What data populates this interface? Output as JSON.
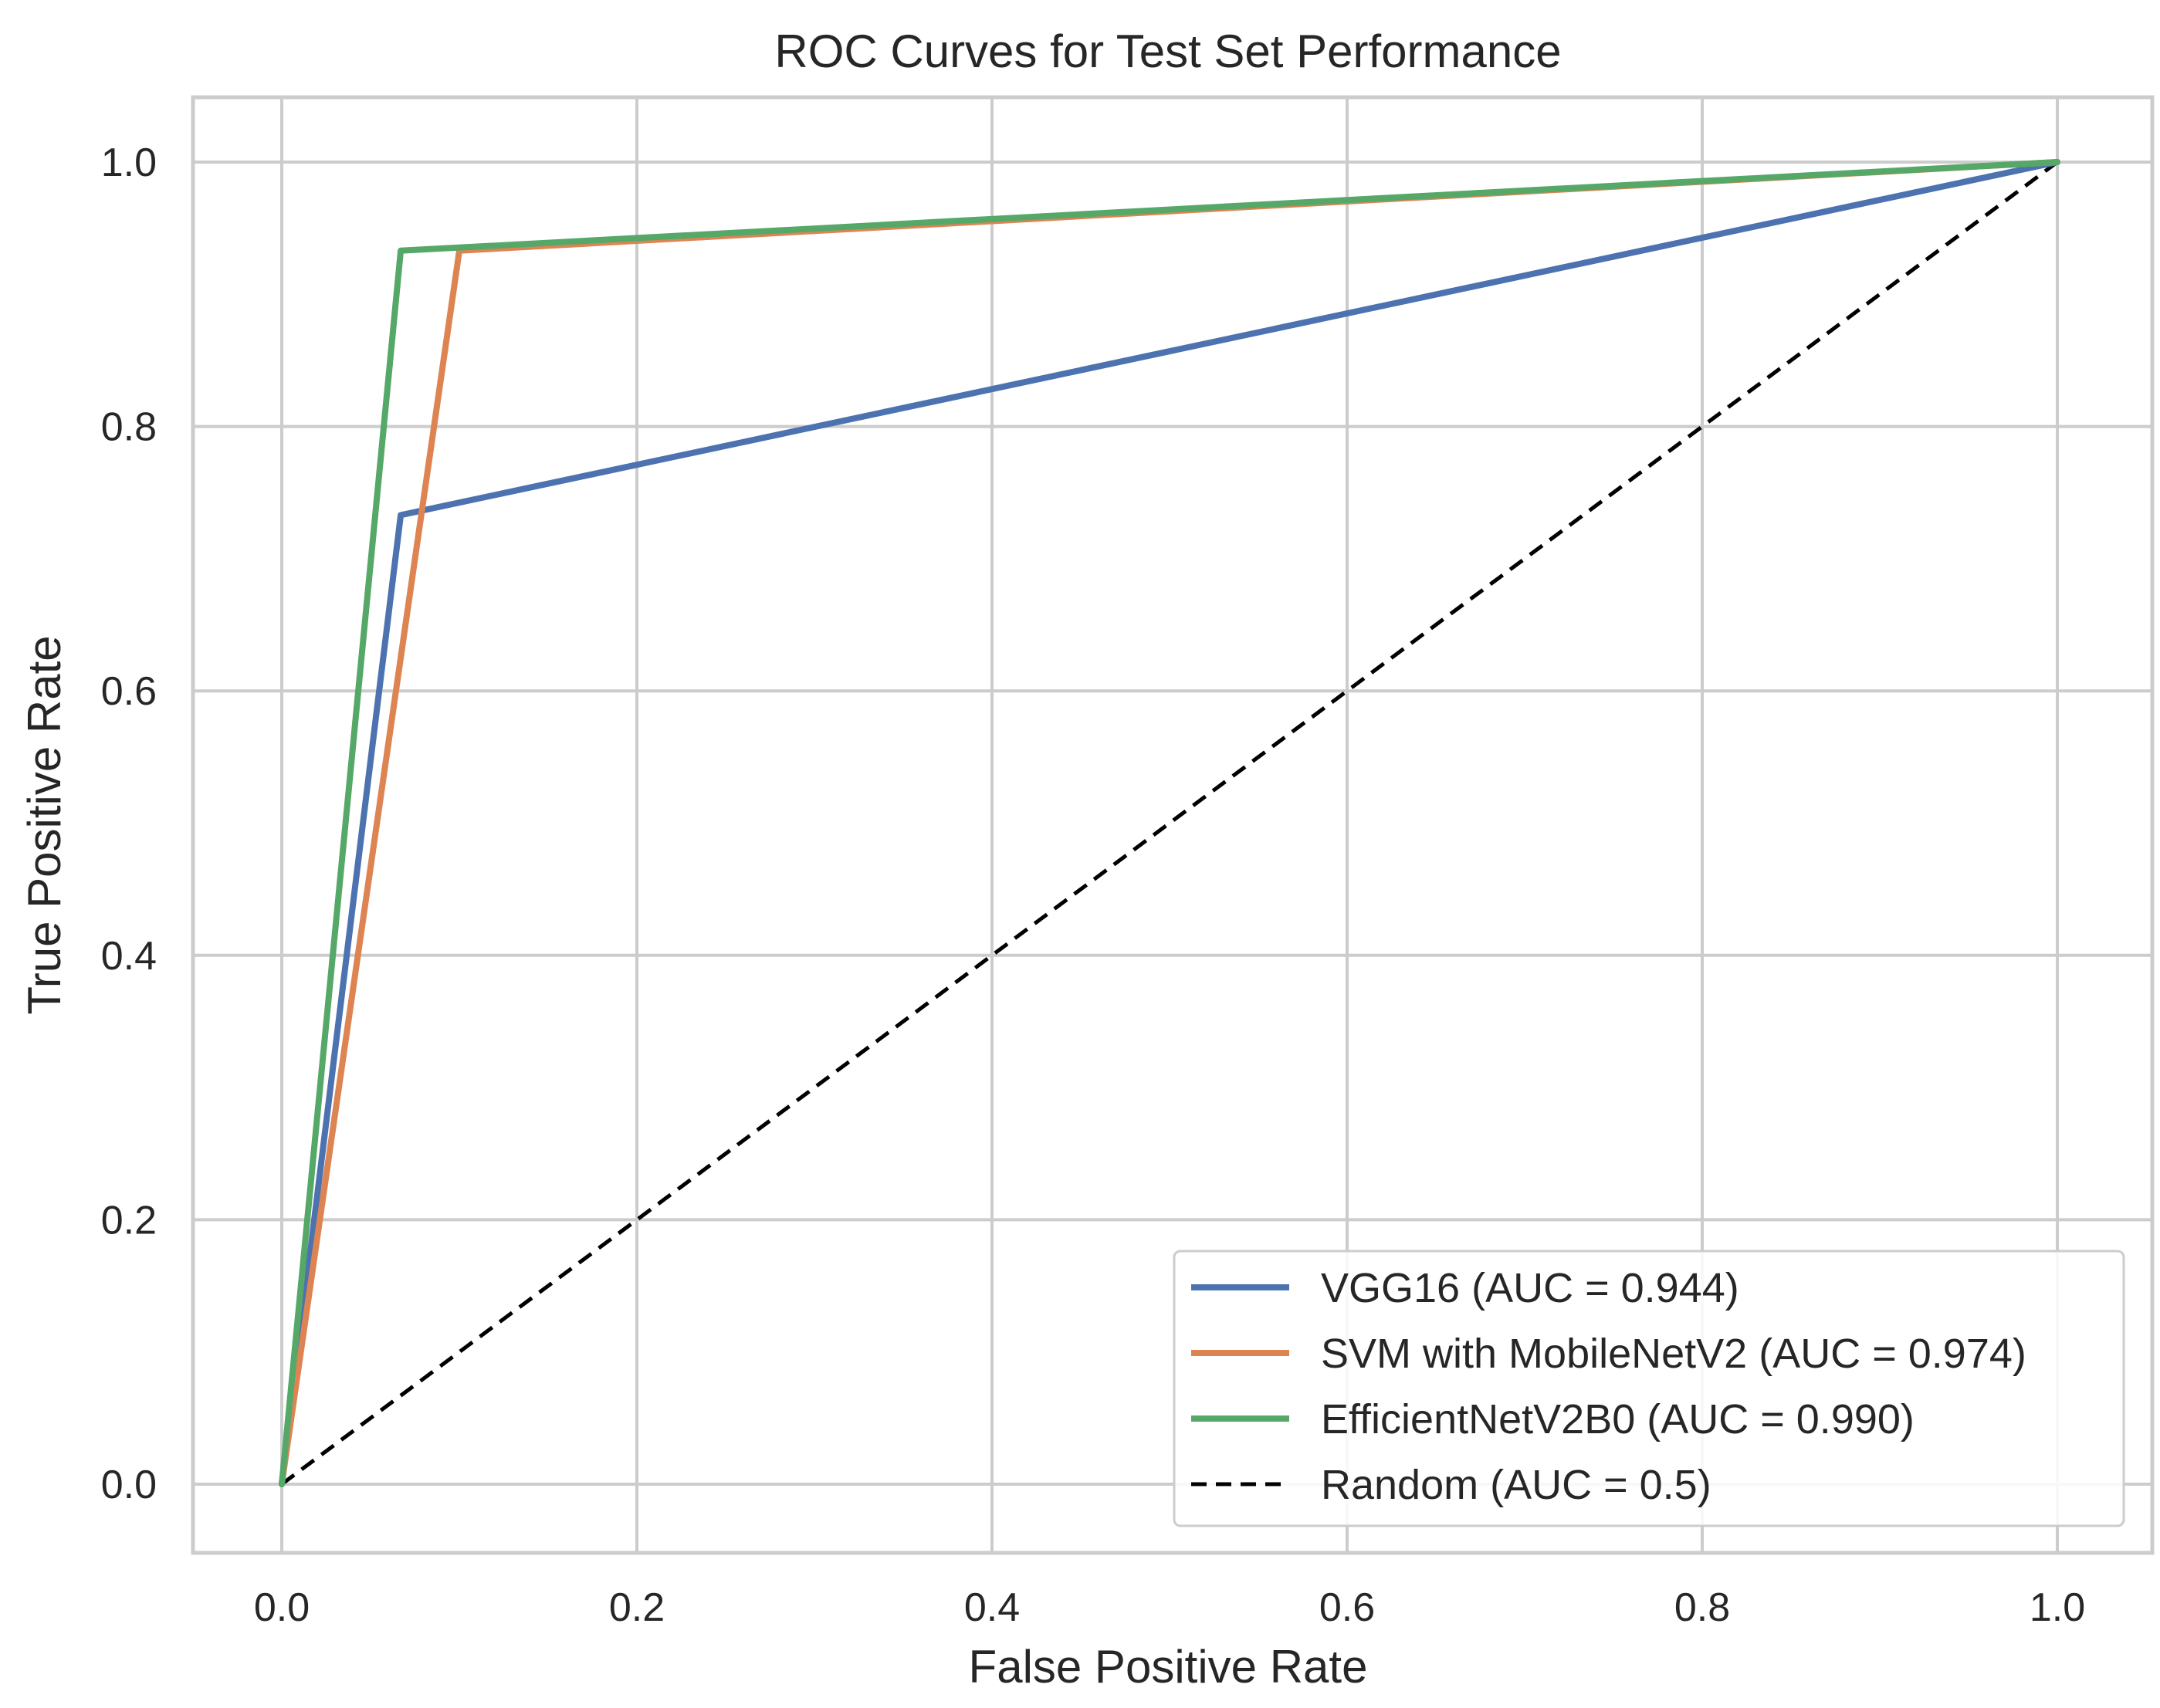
{
  "chart_data": {
    "type": "line",
    "title": "ROC Curves for Test Set Performance",
    "xlabel": "False Positive Rate",
    "ylabel": "True Positive Rate",
    "xlim": [
      -0.05,
      1.05
    ],
    "ylim": [
      -0.05,
      1.05
    ],
    "xticks": [
      "0.0",
      "0.2",
      "0.4",
      "0.6",
      "0.8",
      "1.0"
    ],
    "yticks": [
      "0.0",
      "0.2",
      "0.4",
      "0.6",
      "0.8",
      "1.0"
    ],
    "grid": true,
    "legend_position": "lower-right",
    "series": [
      {
        "name": "VGG16 (AUC = 0.944)",
        "color": "#4C72B0",
        "dash": "solid",
        "x": [
          0.0,
          0.067,
          1.0
        ],
        "y": [
          0.0,
          0.733,
          1.0
        ]
      },
      {
        "name": "SVM with MobileNetV2 (AUC = 0.974)",
        "color": "#DD8452",
        "dash": "solid",
        "x": [
          0.0,
          0.1,
          1.0
        ],
        "y": [
          0.0,
          0.933,
          1.0
        ]
      },
      {
        "name": "EfficientNetV2B0 (AUC = 0.990)",
        "color": "#55A868",
        "dash": "solid",
        "x": [
          0.0,
          0.067,
          1.0
        ],
        "y": [
          0.0,
          0.933,
          1.0
        ]
      },
      {
        "name": "Random (AUC = 0.5)",
        "color": "#000000",
        "dash": "dashed",
        "x": [
          0.0,
          1.0
        ],
        "y": [
          0.0,
          1.0
        ]
      }
    ]
  }
}
